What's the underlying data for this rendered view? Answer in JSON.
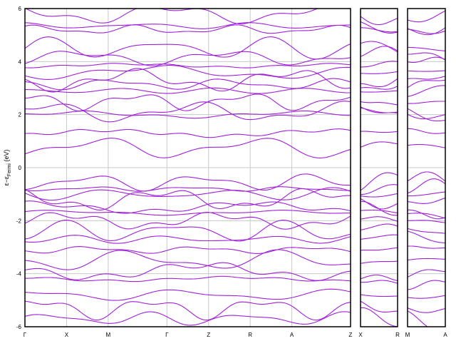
{
  "chart_data": {
    "type": "line",
    "title": "",
    "ylabel": "ε−ε",
    "ylabel_sub": "Fermi",
    "ylabel_unit": " (eV)",
    "ylim": [
      -6,
      6
    ],
    "yticks": [
      -6,
      -4,
      -2,
      0,
      2,
      4,
      6
    ],
    "grid": true,
    "colors": {
      "band": "#a020d8",
      "grid": "#c8c8c8",
      "frame": "#000000"
    },
    "panels": [
      {
        "labels": [
          "Γ",
          "X",
          "M",
          "Γ",
          "Z",
          "R",
          "A",
          "Z"
        ],
        "kpos": [
          0,
          1,
          2,
          3.41,
          4.41,
          5.41,
          6.41,
          7.82
        ]
      },
      {
        "labels": [
          "X",
          "R"
        ],
        "kpos": [
          0,
          1
        ]
      },
      {
        "labels": [
          "M",
          "A"
        ],
        "kpos": [
          0,
          1
        ]
      }
    ],
    "band_anchor_energies_at_gamma": [
      -5.7,
      -5.3,
      -4.8,
      -4.2,
      -3.9,
      -3.5,
      -3.1,
      -2.7,
      -2.4,
      -2.0,
      -1.7,
      -1.5,
      -1.2,
      -1.0,
      -0.8,
      -0.55,
      0.75,
      1.3,
      2.0,
      2.1,
      2.5,
      2.9,
      3.15,
      3.3,
      3.6,
      3.85,
      4.15,
      4.5,
      5.2,
      5.35,
      5.8
    ]
  }
}
